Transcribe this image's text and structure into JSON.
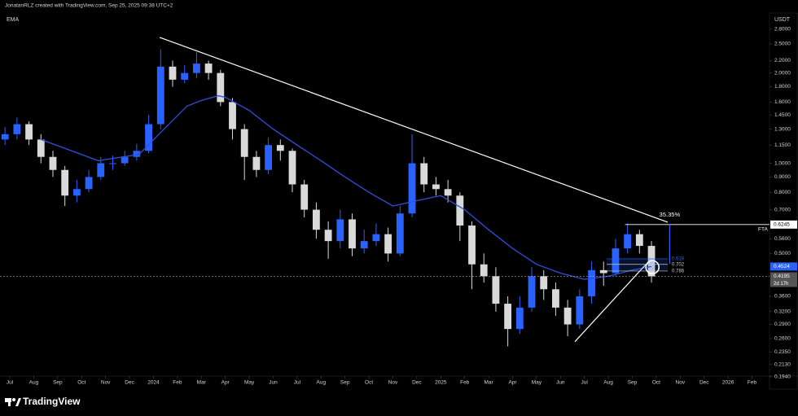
{
  "header": {
    "attribution": "JonatanRLZ created with TradingView.com, Sep 25, 2025 09:38 UTC+2",
    "currency": "USDT"
  },
  "footer": {
    "brand": "TradingView"
  },
  "chart_data": {
    "type": "candlestick",
    "log_scale": true,
    "grid": false,
    "up_color": "#2962ff",
    "down_color": "#d9d9d9",
    "xlim": [
      -0.41,
      31.73
    ],
    "ylim": [
      0.195,
      3.17
    ],
    "xticks": [
      {
        "value": 0,
        "label": "Jul"
      },
      {
        "value": 1,
        "label": "Aug"
      },
      {
        "value": 2,
        "label": "Sep"
      },
      {
        "value": 3,
        "label": "Oct"
      },
      {
        "value": 4,
        "label": "Nov"
      },
      {
        "value": 5,
        "label": "Dec"
      },
      {
        "value": 6,
        "label": "2024"
      },
      {
        "value": 7,
        "label": "Feb"
      },
      {
        "value": 8,
        "label": "Mar"
      },
      {
        "value": 9,
        "label": "Apr"
      },
      {
        "value": 10,
        "label": "May"
      },
      {
        "value": 11,
        "label": "Jun"
      },
      {
        "value": 12,
        "label": "Jul"
      },
      {
        "value": 13,
        "label": "Aug"
      },
      {
        "value": 14,
        "label": "Sep"
      },
      {
        "value": 15,
        "label": "Oct"
      },
      {
        "value": 16,
        "label": "Nov"
      },
      {
        "value": 17,
        "label": "Dec"
      },
      {
        "value": 18,
        "label": "2025"
      },
      {
        "value": 19,
        "label": "Feb"
      },
      {
        "value": 20,
        "label": "Mar"
      },
      {
        "value": 21,
        "label": "Apr"
      },
      {
        "value": 22,
        "label": "May"
      },
      {
        "value": 23,
        "label": "Jun"
      },
      {
        "value": 24,
        "label": "Jul"
      },
      {
        "value": 25,
        "label": "Aug"
      },
      {
        "value": 26,
        "label": "Sep"
      },
      {
        "value": 27,
        "label": "Oct"
      },
      {
        "value": 28,
        "label": "Nov"
      },
      {
        "value": 29,
        "label": "Dec"
      },
      {
        "value": 30,
        "label": "2026"
      },
      {
        "value": 31,
        "label": "Feb"
      }
    ],
    "yticks": [
      {
        "value": 2.8,
        "label": "2.8000"
      },
      {
        "value": 2.5,
        "label": "2.5000"
      },
      {
        "value": 2.2,
        "label": "2.2000"
      },
      {
        "value": 2.0,
        "label": "2.0000"
      },
      {
        "value": 1.8,
        "label": "1.8000"
      },
      {
        "value": 1.6,
        "label": "1.6000"
      },
      {
        "value": 1.45,
        "label": "1.4500"
      },
      {
        "value": 1.3,
        "label": "1.3000"
      },
      {
        "value": 1.15,
        "label": "1.1500"
      },
      {
        "value": 1.0,
        "label": "1.0000"
      },
      {
        "value": 0.9,
        "label": "0.9000"
      },
      {
        "value": 0.8,
        "label": "0.8000"
      },
      {
        "value": 0.7,
        "label": "0.7000"
      },
      {
        "value": 0.56,
        "label": "0.5600"
      },
      {
        "value": 0.5,
        "label": "0.5000"
      },
      {
        "value": 0.36,
        "label": "0.3600"
      },
      {
        "value": 0.32,
        "label": "0.3200"
      },
      {
        "value": 0.29,
        "label": "0.2900"
      },
      {
        "value": 0.26,
        "label": "0.2600"
      },
      {
        "value": 0.235,
        "label": "0.2350"
      },
      {
        "value": 0.213,
        "label": "0.2130"
      },
      {
        "value": 0.194,
        "label": "0.1940"
      }
    ],
    "x": [
      -0.2,
      0.3,
      0.8,
      1.3,
      1.8,
      2.3,
      2.8,
      3.3,
      3.8,
      4.3,
      4.8,
      5.3,
      5.8,
      6.3,
      6.8,
      7.3,
      7.8,
      8.3,
      8.8,
      9.3,
      9.8,
      10.3,
      10.8,
      11.3,
      11.8,
      12.3,
      12.8,
      13.3,
      13.8,
      14.3,
      14.8,
      15.3,
      15.8,
      16.3,
      16.8,
      17.3,
      17.8,
      18.3,
      18.8,
      19.3,
      19.8,
      20.3,
      20.8,
      21.3,
      21.8,
      22.3,
      22.8,
      23.3,
      23.8,
      24.3,
      24.8,
      25.3,
      25.8,
      26.3,
      26.8
    ],
    "open": [
      1.2,
      1.25,
      1.35,
      1.2,
      1.05,
      0.95,
      0.78,
      0.82,
      0.9,
      1.0,
      1.0,
      1.05,
      1.1,
      1.35,
      2.1,
      1.9,
      2.0,
      2.15,
      2.0,
      1.6,
      1.3,
      1.05,
      0.95,
      1.15,
      1.1,
      0.85,
      0.7,
      0.6,
      0.55,
      0.65,
      0.52,
      0.55,
      0.58,
      0.5,
      0.68,
      1.0,
      0.85,
      0.82,
      0.78,
      0.62,
      0.46,
      0.42,
      0.34,
      0.28,
      0.33,
      0.42,
      0.38,
      0.33,
      0.29,
      0.36,
      0.44,
      0.43,
      0.52,
      0.58,
      0.53
    ],
    "high": [
      1.32,
      1.42,
      1.38,
      1.25,
      1.1,
      0.98,
      0.88,
      0.95,
      1.05,
      1.06,
      1.1,
      1.16,
      1.45,
      2.4,
      2.2,
      2.12,
      2.35,
      2.2,
      2.05,
      1.65,
      1.35,
      1.1,
      1.22,
      1.2,
      1.12,
      0.88,
      0.74,
      0.64,
      0.7,
      0.68,
      0.6,
      0.63,
      0.61,
      0.72,
      1.25,
      1.05,
      0.9,
      0.88,
      0.8,
      0.64,
      0.5,
      0.45,
      0.36,
      0.36,
      0.45,
      0.44,
      0.4,
      0.35,
      0.38,
      0.47,
      0.47,
      0.56,
      0.63,
      0.6,
      0.55
    ],
    "low": [
      1.15,
      1.2,
      1.15,
      1.0,
      0.9,
      0.72,
      0.74,
      0.8,
      0.88,
      0.95,
      0.98,
      1.02,
      1.08,
      1.3,
      1.8,
      1.85,
      1.92,
      1.9,
      1.55,
      1.2,
      0.88,
      0.9,
      0.92,
      1.02,
      0.8,
      0.66,
      0.56,
      0.48,
      0.52,
      0.49,
      0.5,
      0.53,
      0.47,
      0.49,
      0.66,
      0.8,
      0.78,
      0.74,
      0.55,
      0.38,
      0.4,
      0.32,
      0.245,
      0.27,
      0.32,
      0.35,
      0.31,
      0.265,
      0.28,
      0.34,
      0.39,
      0.42,
      0.5,
      0.5,
      0.4
    ],
    "close": [
      1.25,
      1.35,
      1.2,
      1.05,
      0.95,
      0.78,
      0.82,
      0.9,
      1.0,
      1.0,
      1.05,
      1.1,
      1.35,
      2.1,
      1.9,
      2.0,
      2.15,
      2.0,
      1.6,
      1.3,
      1.05,
      0.95,
      1.15,
      1.1,
      0.85,
      0.7,
      0.6,
      0.55,
      0.65,
      0.52,
      0.55,
      0.58,
      0.5,
      0.68,
      1.0,
      0.85,
      0.82,
      0.78,
      0.62,
      0.46,
      0.42,
      0.34,
      0.28,
      0.33,
      0.42,
      0.38,
      0.33,
      0.29,
      0.36,
      0.44,
      0.43,
      0.52,
      0.58,
      0.53,
      0.4195
    ],
    "ema": {
      "name": "EMA",
      "color": "#2f4fd8",
      "x": [
        1.3,
        3.7,
        5.4,
        6.4,
        7.4,
        8.0,
        8.7,
        9.0,
        10.0,
        11.0,
        12.0,
        13.0,
        14.0,
        15.0,
        16.0,
        17.0,
        18.0,
        19.0,
        20.0,
        21.0,
        22.0,
        23.0,
        24.0,
        25.0,
        26.0,
        26.8
      ],
      "values": [
        1.2,
        1.02,
        1.07,
        1.29,
        1.55,
        1.62,
        1.68,
        1.66,
        1.5,
        1.3,
        1.15,
        1.02,
        0.9,
        0.8,
        0.72,
        0.75,
        0.78,
        0.7,
        0.6,
        0.52,
        0.46,
        0.43,
        0.41,
        0.42,
        0.44,
        0.4524
      ]
    },
    "trendlines": [
      {
        "color": "#ffffff",
        "x": [
          6.26,
          27.48
        ],
        "y": [
          2.63,
          0.636
        ]
      },
      {
        "color": "#ffffff",
        "x": [
          23.6,
          26.57
        ],
        "y": [
          0.254,
          0.46
        ]
      }
    ],
    "fta": {
      "label": "FTA",
      "value": 0.6245,
      "x_start": 25.7
    },
    "fib": {
      "x": [
        24.93,
        27.48
      ],
      "color": "#2962ff",
      "levels": [
        {
          "ratio": 0.618,
          "price": 0.48
        },
        {
          "ratio": 0.702,
          "price": 0.46
        },
        {
          "ratio": 0.786,
          "price": 0.437
        }
      ]
    },
    "measure": {
      "x": 27.56,
      "from": 0.4614,
      "to": 0.6245,
      "change": {
        "value": 35.35,
        "label": "35.35%"
      }
    },
    "circle": {
      "x": 26.84,
      "y": 0.45
    },
    "price_labels": {
      "ema": 0.4524,
      "last": 0.4195,
      "countdown": "2d 17h"
    }
  }
}
